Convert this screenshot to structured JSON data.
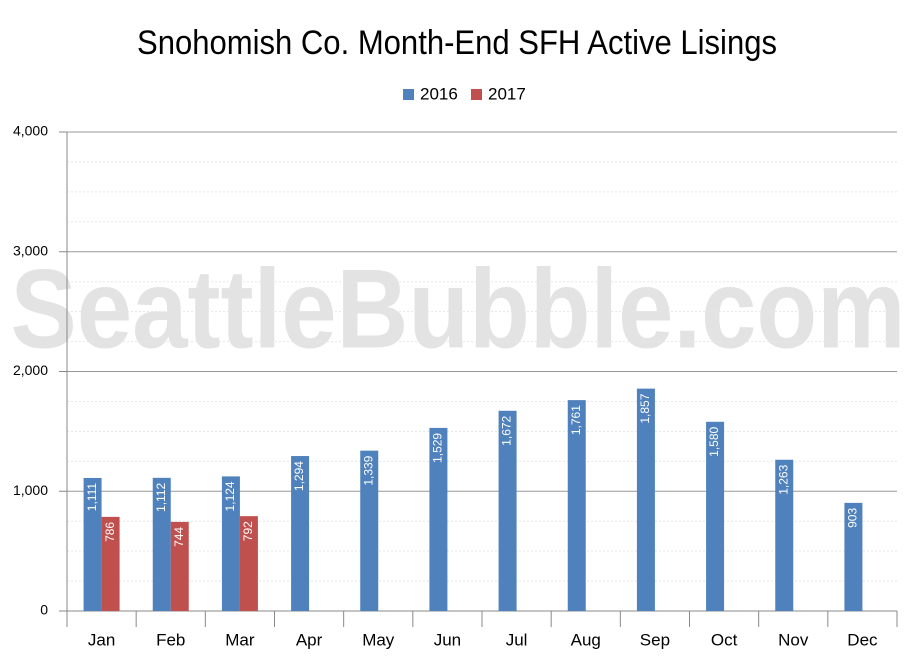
{
  "chart_data": {
    "type": "bar",
    "title": "Snohomish Co. Month-End SFH Active Lisings",
    "watermark": "SeattleBubble.com",
    "categories": [
      "Jan",
      "Feb",
      "Mar",
      "Apr",
      "May",
      "Jun",
      "Jul",
      "Aug",
      "Sep",
      "Oct",
      "Nov",
      "Dec"
    ],
    "series": [
      {
        "name": "2016",
        "color": "#4f81bd",
        "values": [
          1111,
          1112,
          1124,
          1294,
          1339,
          1529,
          1672,
          1761,
          1857,
          1580,
          1263,
          903
        ],
        "value_labels": [
          "1,111",
          "1,112",
          "1,124",
          "1,294",
          "1,339",
          "1,529",
          "1,672",
          "1,761",
          "1,857",
          "1,580",
          "1,263",
          "903"
        ]
      },
      {
        "name": "2017",
        "color": "#c0504d",
        "values": [
          786,
          744,
          792,
          null,
          null,
          null,
          null,
          null,
          null,
          null,
          null,
          null
        ],
        "value_labels": [
          "786",
          "744",
          "792",
          null,
          null,
          null,
          null,
          null,
          null,
          null,
          null,
          null
        ]
      }
    ],
    "ylim": [
      0,
      4000
    ],
    "yticks": [
      0,
      {
        "value": 1000,
        "label": "1,000"
      },
      {
        "value": 2000,
        "label": "2,000"
      },
      {
        "value": 3000,
        "label": "3,000"
      },
      {
        "value": 4000,
        "label": "4,000"
      }
    ],
    "grid": true,
    "minor_grid": true,
    "legend": "top"
  }
}
